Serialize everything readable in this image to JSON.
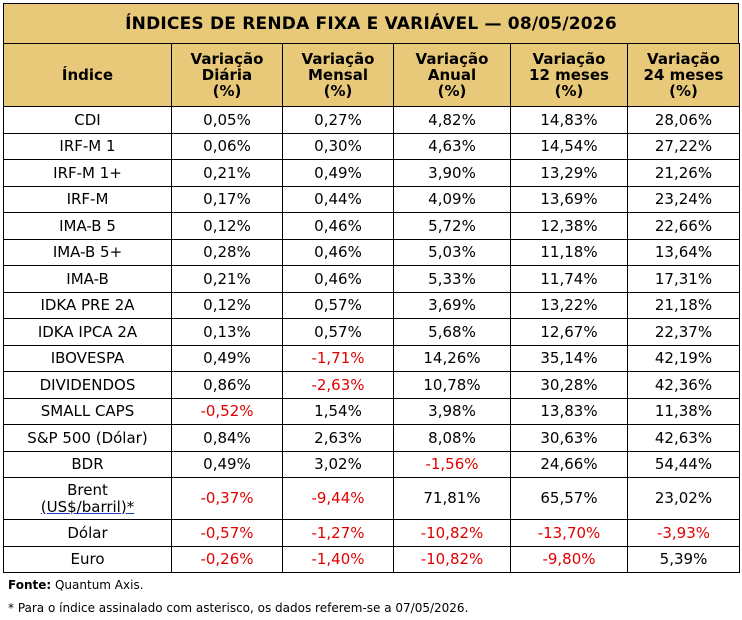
{
  "title": "ÍNDICES DE RENDA FIXA E VARIÁVEL — 08/05/2026",
  "headers": [
    "Índice",
    "Variação Diária (%)",
    "Variação Mensal (%)",
    "Variação Anual (%)",
    "Variação 12 meses (%)",
    "Variação 24 meses (%)"
  ],
  "rows": [
    {
      "name": "CDI",
      "values": [
        "0,05%",
        "0,27%",
        "4,82%",
        "14,83%",
        "28,06%"
      ]
    },
    {
      "name": "IRF-M 1",
      "values": [
        "0,06%",
        "0,30%",
        "4,63%",
        "14,54%",
        "27,22%"
      ]
    },
    {
      "name": "IRF-M 1+",
      "values": [
        "0,21%",
        "0,49%",
        "3,90%",
        "13,29%",
        "21,26%"
      ]
    },
    {
      "name": "IRF-M",
      "values": [
        "0,17%",
        "0,44%",
        "4,09%",
        "13,69%",
        "23,24%"
      ]
    },
    {
      "name": "IMA-B 5",
      "values": [
        "0,12%",
        "0,46%",
        "5,72%",
        "12,38%",
        "22,66%"
      ]
    },
    {
      "name": "IMA-B 5+",
      "values": [
        "0,28%",
        "0,46%",
        "5,03%",
        "11,18%",
        "13,64%"
      ]
    },
    {
      "name": "IMA-B",
      "values": [
        "0,21%",
        "0,46%",
        "5,33%",
        "11,74%",
        "17,31%"
      ]
    },
    {
      "name": "IDKA PRE 2A",
      "values": [
        "0,12%",
        "0,57%",
        "3,69%",
        "13,22%",
        "21,18%"
      ]
    },
    {
      "name": "IDKA IPCA 2A",
      "values": [
        "0,13%",
        "0,57%",
        "5,68%",
        "12,67%",
        "22,37%"
      ]
    },
    {
      "name": "IBOVESPA",
      "values": [
        "0,49%",
        "-1,71%",
        "14,26%",
        "35,14%",
        "42,19%"
      ]
    },
    {
      "name": "DIVIDENDOS",
      "values": [
        "0,86%",
        "-2,63%",
        "10,78%",
        "30,28%",
        "42,36%"
      ]
    },
    {
      "name": "SMALL CAPS",
      "values": [
        "-0,52%",
        "1,54%",
        "3,98%",
        "13,83%",
        "11,38%"
      ]
    },
    {
      "name": "S&P 500 (Dólar)",
      "values": [
        "0,84%",
        "2,63%",
        "8,08%",
        "30,63%",
        "42,63%"
      ]
    },
    {
      "name": "BDR",
      "values": [
        "0,49%",
        "3,02%",
        "-1,56%",
        "24,66%",
        "54,44%"
      ]
    },
    {
      "name": "Brent (US$/barril)*",
      "values": [
        "-0,37%",
        "-9,44%",
        "71,81%",
        "65,57%",
        "23,02%"
      ]
    },
    {
      "name": "Dólar",
      "values": [
        "-0,57%",
        "-1,27%",
        "-10,82%",
        "-13,70%",
        "-3,93%"
      ]
    },
    {
      "name": "Euro",
      "values": [
        "-0,26%",
        "-1,40%",
        "-10,82%",
        "-9,80%",
        "5,39%"
      ]
    }
  ],
  "colors": {
    "header_bg": "#e8c97a",
    "negative": "#e00000"
  },
  "footer": {
    "fonte_label": "Fonte:",
    "fonte_text": " Quantum Axis.",
    "nota": "* Para o índice assinalado com asterisco, os dados referem-se a 07/05/2026."
  }
}
